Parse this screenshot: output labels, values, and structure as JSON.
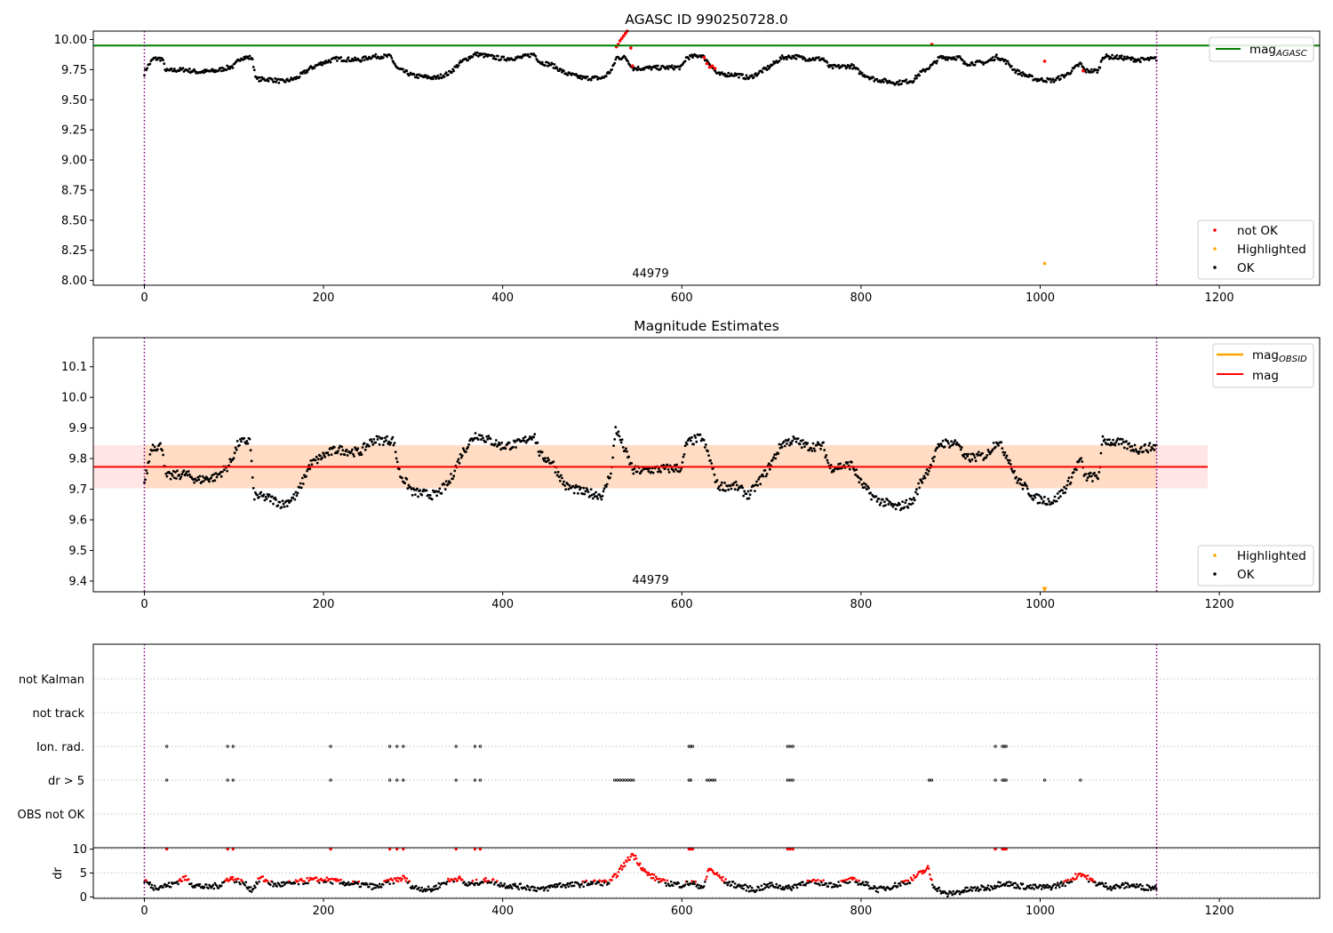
{
  "chart_data": [
    {
      "type": "scatter",
      "title": "AGASC ID 990250728.0",
      "xlim": [
        -57,
        1312
      ],
      "ylim": [
        7.96,
        10.07
      ],
      "xticks": [
        0,
        200,
        400,
        600,
        800,
        1000,
        1200
      ],
      "yticks": [
        8.0,
        8.25,
        8.5,
        8.75,
        9.0,
        9.25,
        9.5,
        9.75,
        10.0
      ],
      "vlines": [
        0,
        1130
      ],
      "obsid_label": "44979",
      "obsid_label_x": 565,
      "reference_lines": [
        {
          "name": "mag_AGASC",
          "value": 9.95,
          "color": "#008000"
        }
      ],
      "highlighted_points": [
        {
          "x": 1005,
          "y": 8.14
        }
      ],
      "not_ok_points": [
        [
          527,
          9.94
        ],
        [
          529,
          9.96
        ],
        [
          531,
          9.99
        ],
        [
          533,
          10.01
        ],
        [
          535,
          10.03
        ],
        [
          537,
          10.05
        ],
        [
          539,
          10.07
        ],
        [
          543,
          9.93
        ],
        [
          545,
          9.78
        ],
        [
          625,
          9.85
        ],
        [
          628,
          9.8
        ],
        [
          631,
          9.77
        ],
        [
          634,
          9.78
        ],
        [
          637,
          9.76
        ],
        [
          879,
          9.96
        ],
        [
          1005,
          9.82
        ],
        [
          1048,
          9.74
        ]
      ],
      "legend_top": [
        {
          "label": "mag_AGASC",
          "color": "#008000"
        }
      ],
      "legend_bottom": [
        {
          "label": "not OK",
          "color": "#ff0000"
        },
        {
          "label": "Highlighted",
          "color": "#ffa500"
        },
        {
          "label": "OK",
          "color": "#000000"
        }
      ],
      "series_knots": [
        [
          0,
          9.72
        ],
        [
          3,
          9.77
        ],
        [
          10,
          9.84
        ],
        [
          20,
          9.84
        ],
        [
          24,
          9.74
        ],
        [
          45,
          9.75
        ],
        [
          60,
          9.73
        ],
        [
          80,
          9.74
        ],
        [
          100,
          9.78
        ],
        [
          108,
          9.85
        ],
        [
          120,
          9.85
        ],
        [
          125,
          9.67
        ],
        [
          140,
          9.67
        ],
        [
          155,
          9.65
        ],
        [
          170,
          9.68
        ],
        [
          185,
          9.76
        ],
        [
          200,
          9.81
        ],
        [
          215,
          9.84
        ],
        [
          240,
          9.83
        ],
        [
          255,
          9.86
        ],
        [
          275,
          9.86
        ],
        [
          282,
          9.76
        ],
        [
          300,
          9.7
        ],
        [
          325,
          9.68
        ],
        [
          340,
          9.72
        ],
        [
          355,
          9.82
        ],
        [
          370,
          9.88
        ],
        [
          400,
          9.84
        ],
        [
          420,
          9.85
        ],
        [
          435,
          9.88
        ],
        [
          442,
          9.81
        ],
        [
          455,
          9.79
        ],
        [
          470,
          9.72
        ],
        [
          490,
          9.68
        ],
        [
          512,
          9.68
        ],
        [
          522,
          9.75
        ],
        [
          527,
          9.85
        ],
        [
          537,
          9.85
        ],
        [
          546,
          9.76
        ],
        [
          600,
          9.77
        ],
        [
          605,
          9.85
        ],
        [
          622,
          9.87
        ],
        [
          630,
          9.81
        ],
        [
          640,
          9.71
        ],
        [
          660,
          9.71
        ],
        [
          675,
          9.68
        ],
        [
          695,
          9.76
        ],
        [
          712,
          9.85
        ],
        [
          725,
          9.86
        ],
        [
          740,
          9.84
        ],
        [
          758,
          9.84
        ],
        [
          765,
          9.77
        ],
        [
          790,
          9.78
        ],
        [
          800,
          9.72
        ],
        [
          815,
          9.67
        ],
        [
          840,
          9.64
        ],
        [
          858,
          9.66
        ],
        [
          866,
          9.72
        ],
        [
          880,
          9.79
        ],
        [
          888,
          9.85
        ],
        [
          910,
          9.85
        ],
        [
          915,
          9.8
        ],
        [
          940,
          9.81
        ],
        [
          952,
          9.86
        ],
        [
          965,
          9.8
        ],
        [
          972,
          9.74
        ],
        [
          985,
          9.7
        ],
        [
          995,
          9.67
        ],
        [
          1015,
          9.66
        ],
        [
          1030,
          9.71
        ],
        [
          1045,
          9.8
        ],
        [
          1050,
          9.74
        ],
        [
          1065,
          9.74
        ],
        [
          1070,
          9.86
        ],
        [
          1090,
          9.85
        ],
        [
          1110,
          9.83
        ],
        [
          1130,
          9.84
        ]
      ]
    },
    {
      "type": "scatter",
      "title": "Magnitude Estimates",
      "xlim": [
        -57,
        1312
      ],
      "ylim": [
        9.365,
        10.195
      ],
      "xticks": [
        0,
        200,
        400,
        600,
        800,
        1000,
        1200
      ],
      "yticks": [
        9.4,
        9.5,
        9.6,
        9.7,
        9.8,
        9.9,
        10.0,
        10.1
      ],
      "vlines": [
        0,
        1130
      ],
      "obsid_label": "44979",
      "obsid_label_x": 565,
      "mag_line": {
        "value": 9.773,
        "color": "#ff0000"
      },
      "mag_band": {
        "low": 9.703,
        "high": 9.844,
        "x_range": [
          -57,
          1187
        ]
      },
      "obsid_band": {
        "low": 9.703,
        "high": 9.844,
        "x_range": [
          0,
          1130
        ]
      },
      "highlighted_points": [
        {
          "x": 1005,
          "y": 9.372
        }
      ],
      "legend_top": [
        {
          "label": "mag_OBSID",
          "color": "#ffa500"
        },
        {
          "label": "mag",
          "color": "#ff0000"
        }
      ],
      "legend_bottom": [
        {
          "label": "Highlighted",
          "color": "#ffa500"
        },
        {
          "label": "OK",
          "color": "#000000"
        }
      ],
      "series_knots": [
        [
          0,
          9.72
        ],
        [
          3,
          9.76
        ],
        [
          8,
          9.84
        ],
        [
          20,
          9.84
        ],
        [
          24,
          9.74
        ],
        [
          45,
          9.75
        ],
        [
          60,
          9.73
        ],
        [
          80,
          9.74
        ],
        [
          95,
          9.78
        ],
        [
          105,
          9.85
        ],
        [
          118,
          9.86
        ],
        [
          122,
          9.68
        ],
        [
          140,
          9.67
        ],
        [
          155,
          9.65
        ],
        [
          170,
          9.68
        ],
        [
          185,
          9.78
        ],
        [
          200,
          9.81
        ],
        [
          215,
          9.83
        ],
        [
          240,
          9.82
        ],
        [
          255,
          9.86
        ],
        [
          278,
          9.86
        ],
        [
          285,
          9.75
        ],
        [
          300,
          9.69
        ],
        [
          325,
          9.68
        ],
        [
          340,
          9.72
        ],
        [
          355,
          9.82
        ],
        [
          370,
          9.88
        ],
        [
          400,
          9.84
        ],
        [
          420,
          9.85
        ],
        [
          435,
          9.88
        ],
        [
          442,
          9.81
        ],
        [
          455,
          9.79
        ],
        [
          470,
          9.71
        ],
        [
          490,
          9.69
        ],
        [
          512,
          9.68
        ],
        [
          522,
          9.77
        ],
        [
          526,
          9.9
        ],
        [
          546,
          9.76
        ],
        [
          600,
          9.77
        ],
        [
          605,
          9.85
        ],
        [
          622,
          9.87
        ],
        [
          630,
          9.81
        ],
        [
          640,
          9.71
        ],
        [
          660,
          9.71
        ],
        [
          675,
          9.68
        ],
        [
          695,
          9.76
        ],
        [
          712,
          9.85
        ],
        [
          725,
          9.86
        ],
        [
          740,
          9.84
        ],
        [
          758,
          9.84
        ],
        [
          765,
          9.77
        ],
        [
          790,
          9.78
        ],
        [
          800,
          9.72
        ],
        [
          815,
          9.67
        ],
        [
          840,
          9.64
        ],
        [
          858,
          9.66
        ],
        [
          866,
          9.72
        ],
        [
          880,
          9.79
        ],
        [
          888,
          9.85
        ],
        [
          910,
          9.85
        ],
        [
          915,
          9.8
        ],
        [
          940,
          9.81
        ],
        [
          952,
          9.86
        ],
        [
          965,
          9.8
        ],
        [
          972,
          9.74
        ],
        [
          985,
          9.7
        ],
        [
          995,
          9.67
        ],
        [
          1015,
          9.66
        ],
        [
          1030,
          9.71
        ],
        [
          1045,
          9.8
        ],
        [
          1050,
          9.74
        ],
        [
          1065,
          9.74
        ],
        [
          1070,
          9.86
        ],
        [
          1090,
          9.85
        ],
        [
          1110,
          9.83
        ],
        [
          1130,
          9.84
        ]
      ]
    },
    {
      "type": "scatter",
      "xlim": [
        -57,
        1312
      ],
      "xticks": [
        0,
        200,
        400,
        600,
        800,
        1000,
        1200
      ],
      "vlines": [
        0,
        1130
      ],
      "flag_categories": [
        "not Kalman",
        "not track",
        "Ion. rad.",
        "dr > 5",
        "OBS not OK"
      ],
      "flags": {
        "Ion. rad.": [
          25,
          93,
          99,
          208,
          274,
          282,
          289,
          348,
          369,
          375,
          608,
          610,
          612,
          718,
          721,
          724,
          950,
          958,
          960,
          962
        ],
        "dr > 5": [
          25,
          93,
          99,
          208,
          274,
          282,
          289,
          348,
          369,
          375,
          525,
          528,
          531,
          534,
          537,
          540,
          543,
          546,
          608,
          610,
          628,
          631,
          634,
          637,
          718,
          721,
          724,
          876,
          879,
          950,
          958,
          960,
          962,
          1005,
          1045
        ]
      }
    },
    {
      "type": "scatter",
      "ylabel": "dr",
      "xlim": [
        -57,
        1312
      ],
      "ylim": [
        -0.3,
        10.3
      ],
      "xticks": [
        0,
        200,
        400,
        600,
        800,
        1000,
        1200
      ],
      "yticks": [
        0,
        5,
        10
      ],
      "vlines": [
        0,
        1130
      ],
      "flag_x": [
        25,
        93,
        99,
        208,
        274,
        282,
        289,
        348,
        369,
        375,
        608,
        610,
        612,
        718,
        721,
        724,
        950,
        958,
        960,
        962
      ],
      "series_knots": [
        [
          0,
          3.5
        ],
        [
          10,
          2
        ],
        [
          30,
          2.5
        ],
        [
          45,
          4
        ],
        [
          55,
          2.5
        ],
        [
          70,
          2
        ],
        [
          85,
          2.5
        ],
        [
          95,
          4
        ],
        [
          110,
          3
        ],
        [
          120,
          1.5
        ],
        [
          130,
          4
        ],
        [
          145,
          2.5
        ],
        [
          165,
          2.8
        ],
        [
          185,
          3.5
        ],
        [
          205,
          3.5
        ],
        [
          220,
          3
        ],
        [
          245,
          2.5
        ],
        [
          260,
          2
        ],
        [
          270,
          3
        ],
        [
          290,
          4
        ],
        [
          300,
          2
        ],
        [
          320,
          1.5
        ],
        [
          335,
          3
        ],
        [
          350,
          4
        ],
        [
          360,
          2.5
        ],
        [
          370,
          3
        ],
        [
          385,
          3.5
        ],
        [
          400,
          2.5
        ],
        [
          430,
          2
        ],
        [
          445,
          1.5
        ],
        [
          460,
          2.5
        ],
        [
          480,
          2.5
        ],
        [
          500,
          3
        ],
        [
          520,
          3
        ],
        [
          545,
          9
        ],
        [
          560,
          5
        ],
        [
          580,
          3
        ],
        [
          600,
          2.5
        ],
        [
          610,
          3
        ],
        [
          625,
          2
        ],
        [
          630,
          6
        ],
        [
          650,
          3
        ],
        [
          680,
          1.5
        ],
        [
          700,
          2.5
        ],
        [
          720,
          1.8
        ],
        [
          735,
          3
        ],
        [
          755,
          3
        ],
        [
          770,
          2.5
        ],
        [
          790,
          3.5
        ],
        [
          800,
          3
        ],
        [
          820,
          1.5
        ],
        [
          840,
          2.5
        ],
        [
          855,
          3.5
        ],
        [
          875,
          6
        ],
        [
          880,
          2.5
        ],
        [
          895,
          0.5
        ],
        [
          920,
          1.5
        ],
        [
          945,
          2
        ],
        [
          958,
          3
        ],
        [
          970,
          2.5
        ],
        [
          990,
          2
        ],
        [
          1010,
          2
        ],
        [
          1030,
          3
        ],
        [
          1045,
          5
        ],
        [
          1060,
          3
        ],
        [
          1080,
          2
        ],
        [
          1100,
          2.5
        ],
        [
          1115,
          2
        ],
        [
          1130,
          2
        ]
      ]
    }
  ]
}
